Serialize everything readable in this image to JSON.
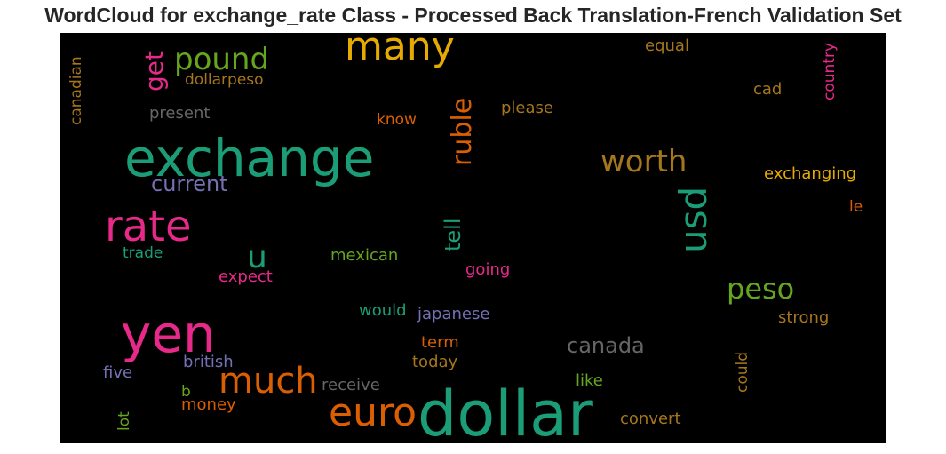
{
  "title": "WordCloud for exchange_rate Class - Processed Back Translation-French Validation Set",
  "words": [
    {
      "text": "exchange",
      "color": "#1b9e77"
    },
    {
      "text": "dollar",
      "color": "#1b9e77"
    },
    {
      "text": "yen",
      "color": "#e7298a"
    },
    {
      "text": "rate",
      "color": "#e7298a"
    },
    {
      "text": "many",
      "color": "#e6ab02"
    },
    {
      "text": "euro",
      "color": "#d95f02"
    },
    {
      "text": "much",
      "color": "#d95f02"
    },
    {
      "text": "usd",
      "color": "#1b9e77"
    },
    {
      "text": "worth",
      "color": "#a6761d"
    },
    {
      "text": "pound",
      "color": "#66a61e"
    },
    {
      "text": "peso",
      "color": "#66a61e"
    },
    {
      "text": "u",
      "color": "#1b9e77"
    },
    {
      "text": "ruble",
      "color": "#d95f02"
    },
    {
      "text": "canada",
      "color": "#666666"
    },
    {
      "text": "get",
      "color": "#e7298a"
    },
    {
      "text": "current",
      "color": "#7570b3"
    },
    {
      "text": "tell",
      "color": "#1b9e77"
    },
    {
      "text": "dollarpeso",
      "color": "#a6761d"
    },
    {
      "text": "present",
      "color": "#666666"
    },
    {
      "text": "know",
      "color": "#d95f02"
    },
    {
      "text": "please",
      "color": "#a6761d"
    },
    {
      "text": "equal",
      "color": "#a6761d"
    },
    {
      "text": "cad",
      "color": "#a6761d"
    },
    {
      "text": "country",
      "color": "#e7298a"
    },
    {
      "text": "canadian",
      "color": "#a6761d"
    },
    {
      "text": "exchanging",
      "color": "#e6ab02"
    },
    {
      "text": "le",
      "color": "#d95f02"
    },
    {
      "text": "trade",
      "color": "#1b9e77"
    },
    {
      "text": "mexican",
      "color": "#66a61e"
    },
    {
      "text": "going",
      "color": "#e7298a"
    },
    {
      "text": "expect",
      "color": "#e7298a"
    },
    {
      "text": "would",
      "color": "#1b9e77"
    },
    {
      "text": "japanese",
      "color": "#7570b3"
    },
    {
      "text": "strong",
      "color": "#a6761d"
    },
    {
      "text": "term",
      "color": "#d95f02"
    },
    {
      "text": "today",
      "color": "#a6761d"
    },
    {
      "text": "british",
      "color": "#7570b3"
    },
    {
      "text": "five",
      "color": "#7570b3"
    },
    {
      "text": "b",
      "color": "#66a61e"
    },
    {
      "text": "money",
      "color": "#d95f02"
    },
    {
      "text": "receive",
      "color": "#666666"
    },
    {
      "text": "like",
      "color": "#66a61e"
    },
    {
      "text": "could",
      "color": "#a6761d"
    },
    {
      "text": "lot",
      "color": "#66a61e"
    },
    {
      "text": "convert",
      "color": "#a6761d"
    }
  ]
}
